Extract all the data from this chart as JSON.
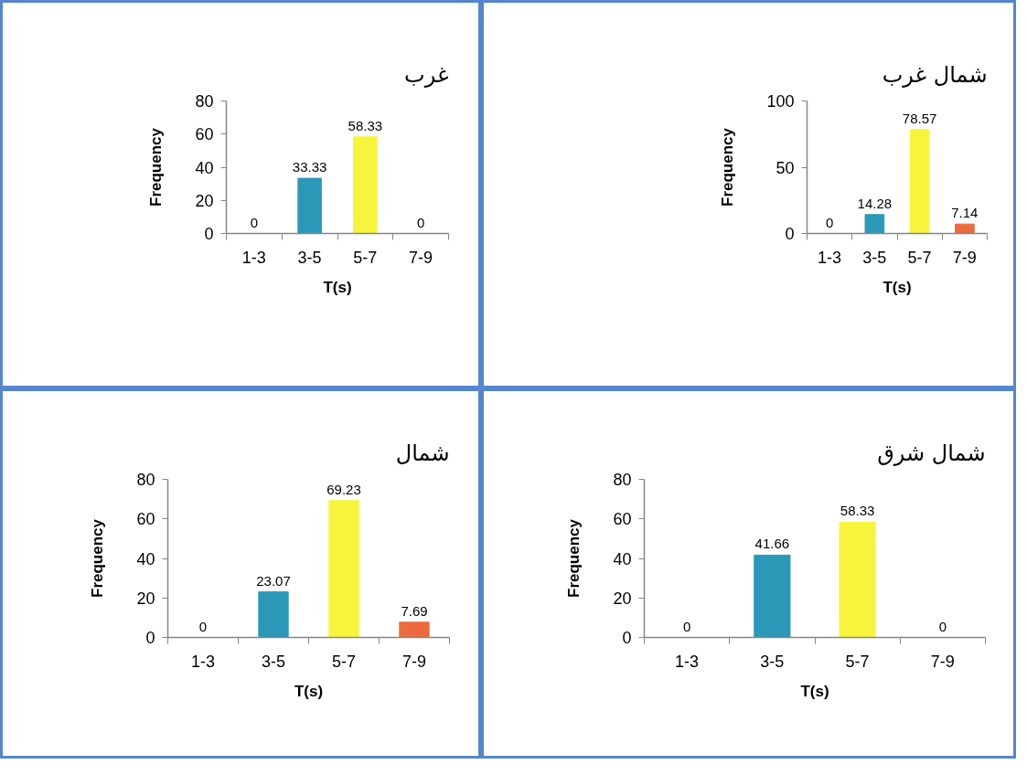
{
  "chart_data": [
    {
      "type": "bar",
      "title": "غرب",
      "xlabel": "T(s)",
      "ylabel": "Frequency",
      "categories": [
        "1-3",
        "3-5",
        "5-7",
        "7-9"
      ],
      "values": [
        0,
        33.33,
        58.33,
        0
      ],
      "colors": [
        null,
        "#2b98b8",
        "#f7f43c",
        null
      ],
      "ylim": [
        0,
        80
      ],
      "yticks": [
        0,
        20,
        40,
        60,
        80
      ],
      "data_labels": true
    },
    {
      "type": "bar",
      "title": "شمال غرب",
      "xlabel": "T(s)",
      "ylabel": "Frequency",
      "categories": [
        "1-3",
        "3-5",
        "5-7",
        "7-9"
      ],
      "values": [
        0,
        14.28,
        78.57,
        7.14
      ],
      "colors": [
        null,
        "#2b98b8",
        "#f7f43c",
        "#ec6a3e"
      ],
      "ylim": [
        0,
        100
      ],
      "yticks": [
        0,
        50,
        100
      ],
      "data_labels": true
    },
    {
      "type": "bar",
      "title": "شمال",
      "xlabel": "T(s)",
      "ylabel": "Frequency",
      "categories": [
        "1-3",
        "3-5",
        "5-7",
        "7-9"
      ],
      "values": [
        0,
        23.07,
        69.23,
        7.69
      ],
      "colors": [
        null,
        "#2b98b8",
        "#f7f43c",
        "#ec6a3e"
      ],
      "ylim": [
        0,
        80
      ],
      "yticks": [
        0,
        20,
        40,
        60,
        80
      ],
      "data_labels": true
    },
    {
      "type": "bar",
      "title": "شمال شرق",
      "xlabel": "T(s)",
      "ylabel": "Frequency",
      "categories": [
        "1-3",
        "3-5",
        "5-7",
        "7-9"
      ],
      "values": [
        0,
        41.66,
        58.33,
        0
      ],
      "colors": [
        null,
        "#2b98b8",
        "#f7f43c",
        null
      ],
      "ylim": [
        0,
        80
      ],
      "yticks": [
        0,
        20,
        40,
        60,
        80
      ],
      "data_labels": true
    }
  ]
}
